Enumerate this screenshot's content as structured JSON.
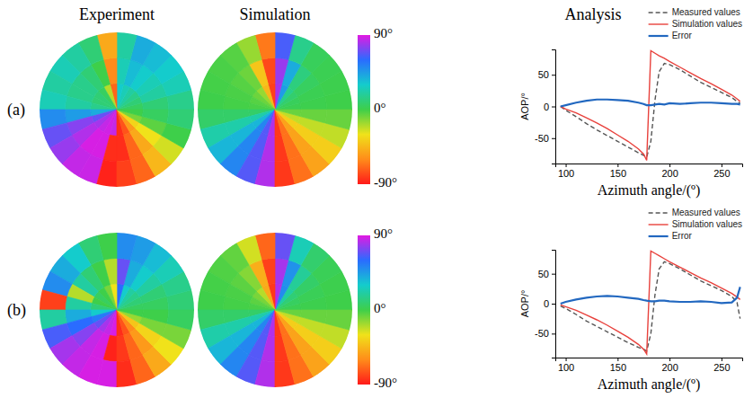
{
  "column_titles": [
    "Experiment",
    "Simulation",
    "Analysis"
  ],
  "row_labels": [
    "(a)",
    "(b)"
  ],
  "chart_data": [
    {
      "type": "polar_heatmap",
      "tick_labels": false,
      "color_range": [
        -90,
        90
      ],
      "theta_bins": [
        0,
        15,
        30,
        45,
        60,
        75,
        90,
        105,
        120,
        135,
        150,
        165,
        180,
        195,
        210,
        225,
        240,
        255,
        270,
        285,
        300,
        315,
        330,
        345,
        360
      ],
      "r_bins": [
        0,
        0.34,
        0.67,
        1
      ],
      "values": [
        [
          5,
          10,
          15,
          20,
          25,
          30,
          -70,
          -20,
          5,
          10,
          10,
          15,
          40,
          70,
          80,
          85,
          87,
          85,
          -85,
          -75,
          -55,
          -35,
          -10,
          0
        ],
        [
          10,
          20,
          25,
          30,
          35,
          25,
          -60,
          0,
          10,
          15,
          15,
          20,
          45,
          75,
          82,
          88,
          88,
          -85,
          -85,
          -70,
          -50,
          -30,
          -5,
          5
        ],
        [
          15,
          25,
          30,
          35,
          40,
          20,
          -50,
          10,
          20,
          25,
          20,
          25,
          50,
          70,
          78,
          85,
          86,
          -88,
          -80,
          -70,
          -45,
          -25,
          0,
          10
        ]
      ]
    },
    {
      "type": "polar_heatmap",
      "tick_labels": false,
      "color_range": [
        -90,
        90
      ],
      "color_ticks": [
        {
          "value": 90,
          "label": "90°"
        },
        {
          "value": 0,
          "label": "0°"
        },
        {
          "value": -90,
          "label": "-90°"
        }
      ],
      "theta_bins": [
        0,
        15,
        30,
        45,
        60,
        75,
        90,
        105,
        120,
        135,
        150,
        165,
        180,
        195,
        210,
        225,
        240,
        255,
        270,
        285,
        300,
        315,
        330,
        345,
        360
      ],
      "r_bins": [
        0,
        0.34,
        0.67,
        1
      ],
      "values": [
        [
          2,
          4,
          8,
          15,
          45,
          80,
          -80,
          -45,
          -15,
          -8,
          -4,
          -2,
          7,
          22,
          37,
          52,
          67,
          82,
          -82,
          -67,
          -52,
          -37,
          -22,
          -7
        ],
        [
          1,
          2,
          5,
          12,
          40,
          78,
          -78,
          -40,
          -8,
          -4,
          -2,
          -1,
          7,
          22,
          37,
          52,
          67,
          82,
          -82,
          -67,
          -52,
          -37,
          -22,
          -7
        ],
        [
          0,
          1,
          2,
          4,
          15,
          65,
          -65,
          -15,
          -4,
          -2,
          -1,
          0,
          7,
          22,
          37,
          52,
          67,
          82,
          -82,
          -67,
          -52,
          -37,
          -22,
          -7
        ]
      ]
    },
    {
      "type": "line",
      "x_label": "Azimuth angle/(º)",
      "y_label": "AOP/°",
      "legend": "top right",
      "xlim": [
        90,
        270
      ],
      "xticks": [
        100,
        150,
        200,
        250
      ],
      "ylim": [
        -90,
        90
      ],
      "yticks": [
        -50,
        0,
        50
      ],
      "x": [
        95,
        100,
        110,
        120,
        130,
        140,
        150,
        160,
        170,
        175,
        178,
        182,
        186,
        190,
        195,
        200,
        210,
        220,
        230,
        240,
        250,
        260,
        265,
        268
      ],
      "series": [
        {
          "name": "Measured values",
          "color": "#555555",
          "line_style": "dashed",
          "values": [
            0,
            -6,
            -16,
            -27,
            -37,
            -46,
            -55,
            -64,
            -73,
            -77,
            -80,
            -55,
            10,
            55,
            68,
            66,
            58,
            48,
            38,
            30,
            22,
            14,
            8,
            5
          ]
        },
        {
          "name": "Simulation values",
          "color": "#e8413c",
          "line_style": "solid",
          "values": [
            0,
            -4,
            -10,
            -18,
            -26,
            -35,
            -45,
            -55,
            -67,
            -75,
            -85,
            88,
            84,
            80,
            76,
            71,
            62,
            53,
            44,
            36,
            27,
            18,
            12,
            8
          ]
        },
        {
          "name": "Error",
          "color": "#2268c0",
          "line_style": "solid",
          "values": [
            0,
            2,
            6,
            9,
            11,
            11,
            10,
            9,
            6,
            4,
            2,
            2,
            3,
            4,
            3,
            5,
            4,
            5,
            6,
            6,
            5,
            4,
            4,
            3
          ]
        }
      ]
    },
    {
      "type": "polar_heatmap",
      "tick_labels": false,
      "color_range": [
        -90,
        90
      ],
      "theta_bins": [
        0,
        15,
        30,
        45,
        60,
        75,
        90,
        105,
        120,
        135,
        150,
        165,
        180,
        195,
        210,
        225,
        240,
        255,
        270,
        285,
        300,
        315,
        330,
        345,
        360
      ],
      "r_bins": [
        0,
        0.34,
        0.67,
        1
      ],
      "values": [
        [
          5,
          10,
          15,
          20,
          30,
          60,
          -30,
          -10,
          0,
          5,
          0,
          10,
          30,
          55,
          70,
          80,
          85,
          88,
          -85,
          -75,
          -60,
          -40,
          -15,
          0
        ],
        [
          5,
          10,
          20,
          30,
          40,
          70,
          -20,
          0,
          10,
          20,
          -20,
          20,
          40,
          60,
          75,
          85,
          88,
          -88,
          -82,
          -70,
          -55,
          -35,
          -10,
          0
        ],
        [
          10,
          15,
          25,
          35,
          45,
          50,
          0,
          10,
          30,
          40,
          50,
          -80,
          20,
          65,
          80,
          85,
          88,
          88,
          -85,
          -70,
          -50,
          -30,
          -10,
          5
        ]
      ]
    },
    {
      "type": "polar_heatmap",
      "tick_labels": false,
      "color_range": [
        -90,
        90
      ],
      "color_ticks": [
        {
          "value": 90,
          "label": "90°"
        },
        {
          "value": 0,
          "label": "0°"
        },
        {
          "value": -90,
          "label": "-90°"
        }
      ],
      "theta_bins": [
        0,
        15,
        30,
        45,
        60,
        75,
        90,
        105,
        120,
        135,
        150,
        165,
        180,
        195,
        210,
        225,
        240,
        255,
        270,
        285,
        300,
        315,
        330,
        345,
        360
      ],
      "r_bins": [
        0,
        0.34,
        0.67,
        1
      ],
      "values": [
        [
          2,
          5,
          10,
          20,
          50,
          82,
          -82,
          -50,
          -20,
          -10,
          -5,
          -2,
          7,
          22,
          37,
          52,
          67,
          82,
          -82,
          -67,
          -52,
          -37,
          -22,
          -7
        ],
        [
          1,
          3,
          7,
          18,
          48,
          80,
          -80,
          -48,
          -12,
          -5,
          -2,
          -1,
          7,
          22,
          37,
          52,
          67,
          82,
          -82,
          -67,
          -52,
          -37,
          -22,
          -7
        ],
        [
          0,
          1,
          3,
          8,
          25,
          70,
          -70,
          -25,
          -6,
          -3,
          -1,
          0,
          7,
          22,
          37,
          52,
          67,
          82,
          -82,
          -67,
          -52,
          -37,
          -22,
          -7
        ]
      ]
    },
    {
      "type": "line",
      "x_label": "Azimuth angle/(º)",
      "y_label": "AOP/°",
      "legend": "top right",
      "xlim": [
        90,
        270
      ],
      "xticks": [
        100,
        150,
        200,
        250
      ],
      "ylim": [
        -90,
        90
      ],
      "yticks": [
        -50,
        0,
        50
      ],
      "x": [
        95,
        100,
        110,
        120,
        130,
        140,
        150,
        160,
        170,
        175,
        178,
        182,
        186,
        190,
        195,
        200,
        210,
        220,
        230,
        240,
        250,
        260,
        265,
        268
      ],
      "series": [
        {
          "name": "Measured values",
          "color": "#555555",
          "line_style": "dashed",
          "values": [
            -4,
            -8,
            -18,
            -29,
            -38,
            -47,
            -56,
            -65,
            -73,
            -76,
            -79,
            -50,
            15,
            58,
            70,
            67,
            58,
            48,
            38,
            30,
            22,
            12,
            2,
            -25
          ]
        },
        {
          "name": "Simulation values",
          "color": "#e8413c",
          "line_style": "solid",
          "values": [
            -2,
            -5,
            -11,
            -19,
            -27,
            -36,
            -46,
            -56,
            -68,
            -76,
            -84,
            88,
            84,
            80,
            75,
            70,
            61,
            52,
            43,
            35,
            26,
            17,
            11,
            7
          ]
        },
        {
          "name": "Error",
          "color": "#2268c0",
          "line_style": "solid",
          "values": [
            0,
            3,
            7,
            10,
            12,
            13,
            12,
            10,
            8,
            6,
            5,
            4,
            4,
            5,
            5,
            4,
            3,
            3,
            4,
            3,
            1,
            2,
            10,
            28
          ]
        }
      ]
    }
  ]
}
